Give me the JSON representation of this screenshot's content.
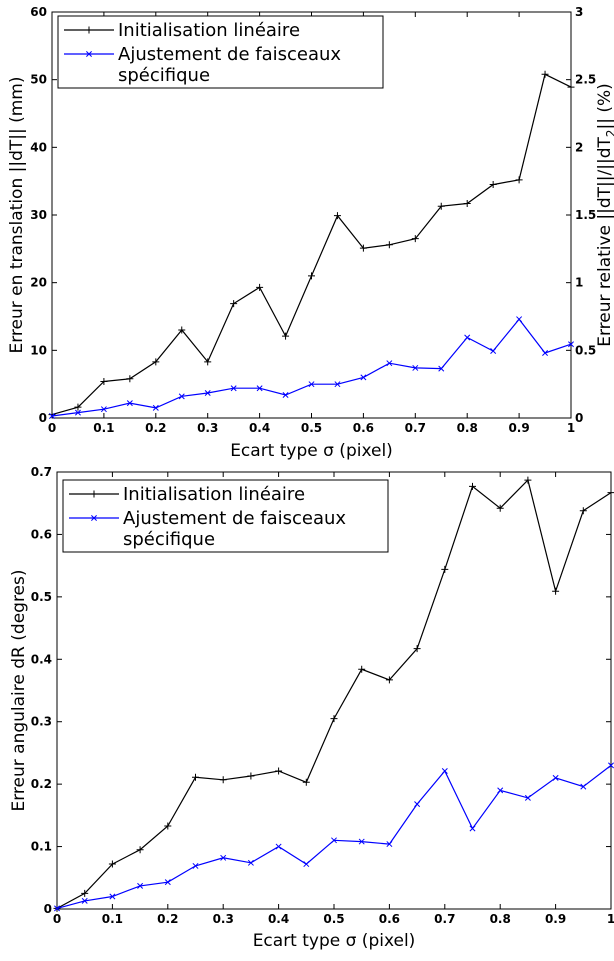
{
  "chart_data": [
    {
      "type": "line",
      "xlabel": "Ecart type σ (pixel)",
      "ylabel": "Erreur en translation ||dT|| (mm)",
      "y2label": "Erreur relative ||dT||/||dT",
      "y2label_sub": "2",
      "y2label_end": "|| (%)",
      "xlim": [
        0,
        1
      ],
      "ylim": [
        0,
        60
      ],
      "y2lim": [
        0,
        3
      ],
      "x": [
        0,
        0.05,
        0.1,
        0.15,
        0.2,
        0.25,
        0.3,
        0.35,
        0.4,
        0.45,
        0.5,
        0.55,
        0.6,
        0.65,
        0.7,
        0.75,
        0.8,
        0.85,
        0.9,
        0.95,
        1
      ],
      "xticks": [
        "0",
        "0.1",
        "0.2",
        "0.3",
        "0.4",
        "0.5",
        "0.6",
        "0.7",
        "0.8",
        "0.9",
        "1"
      ],
      "yticks": [
        "0",
        "10",
        "20",
        "30",
        "40",
        "50",
        "60"
      ],
      "y2ticks": [
        "0",
        "0.5",
        "1",
        "1.5",
        "2",
        "2.5",
        "3"
      ],
      "legend_position": "top-left",
      "series": [
        {
          "name": "Initialisation linéaire",
          "color": "#000000",
          "marker": "+",
          "values": [
            0.5,
            1.6,
            5.4,
            5.8,
            8.3,
            13.0,
            8.3,
            16.9,
            19.3,
            12.1,
            21.0,
            29.9,
            25.1,
            25.6,
            26.5,
            31.3,
            31.7,
            34.5,
            35.2,
            50.8,
            48.9
          ]
        },
        {
          "name": "Ajustement de faisceaux spécifique",
          "name_lines": [
            "Ajustement de faisceaux",
            "spécifique"
          ],
          "color": "#0000ff",
          "marker": "x",
          "values": [
            0.3,
            0.8,
            1.3,
            2.2,
            1.5,
            3.2,
            3.7,
            4.4,
            4.4,
            3.4,
            5.0,
            5.0,
            6.0,
            8.1,
            7.4,
            7.3,
            11.9,
            9.9,
            14.6,
            9.6,
            10.9
          ]
        }
      ]
    },
    {
      "type": "line",
      "xlabel": "Ecart type σ (pixel)",
      "ylabel": "Erreur angulaire dR (degres)",
      "xlim": [
        0,
        1
      ],
      "ylim": [
        0,
        0.7
      ],
      "x": [
        0,
        0.05,
        0.1,
        0.15,
        0.2,
        0.25,
        0.3,
        0.35,
        0.4,
        0.45,
        0.5,
        0.55,
        0.6,
        0.65,
        0.7,
        0.75,
        0.8,
        0.85,
        0.9,
        0.95,
        1
      ],
      "xticks": [
        "0",
        "0.1",
        "0.2",
        "0.3",
        "0.4",
        "0.5",
        "0.6",
        "0.7",
        "0.8",
        "0.9",
        "1"
      ],
      "yticks": [
        "0",
        "0.1",
        "0.2",
        "0.3",
        "0.4",
        "0.5",
        "0.6",
        "0.7"
      ],
      "legend_position": "top-left",
      "series": [
        {
          "name": "Initialisation linéaire",
          "color": "#000000",
          "marker": "+",
          "values": [
            0.001,
            0.025,
            0.072,
            0.095,
            0.133,
            0.211,
            0.207,
            0.213,
            0.221,
            0.203,
            0.305,
            0.384,
            0.367,
            0.417,
            0.544,
            0.677,
            0.642,
            0.687,
            0.509,
            0.638,
            0.667
          ]
        },
        {
          "name": "Ajustement de faisceaux spécifique",
          "name_lines": [
            "Ajustement de faisceaux",
            "spécifique"
          ],
          "color": "#0000ff",
          "marker": "x",
          "values": [
            0.001,
            0.013,
            0.02,
            0.037,
            0.043,
            0.069,
            0.082,
            0.074,
            0.1,
            0.072,
            0.11,
            0.108,
            0.104,
            0.168,
            0.221,
            0.129,
            0.19,
            0.178,
            0.21,
            0.196,
            0.23
          ]
        }
      ]
    }
  ]
}
